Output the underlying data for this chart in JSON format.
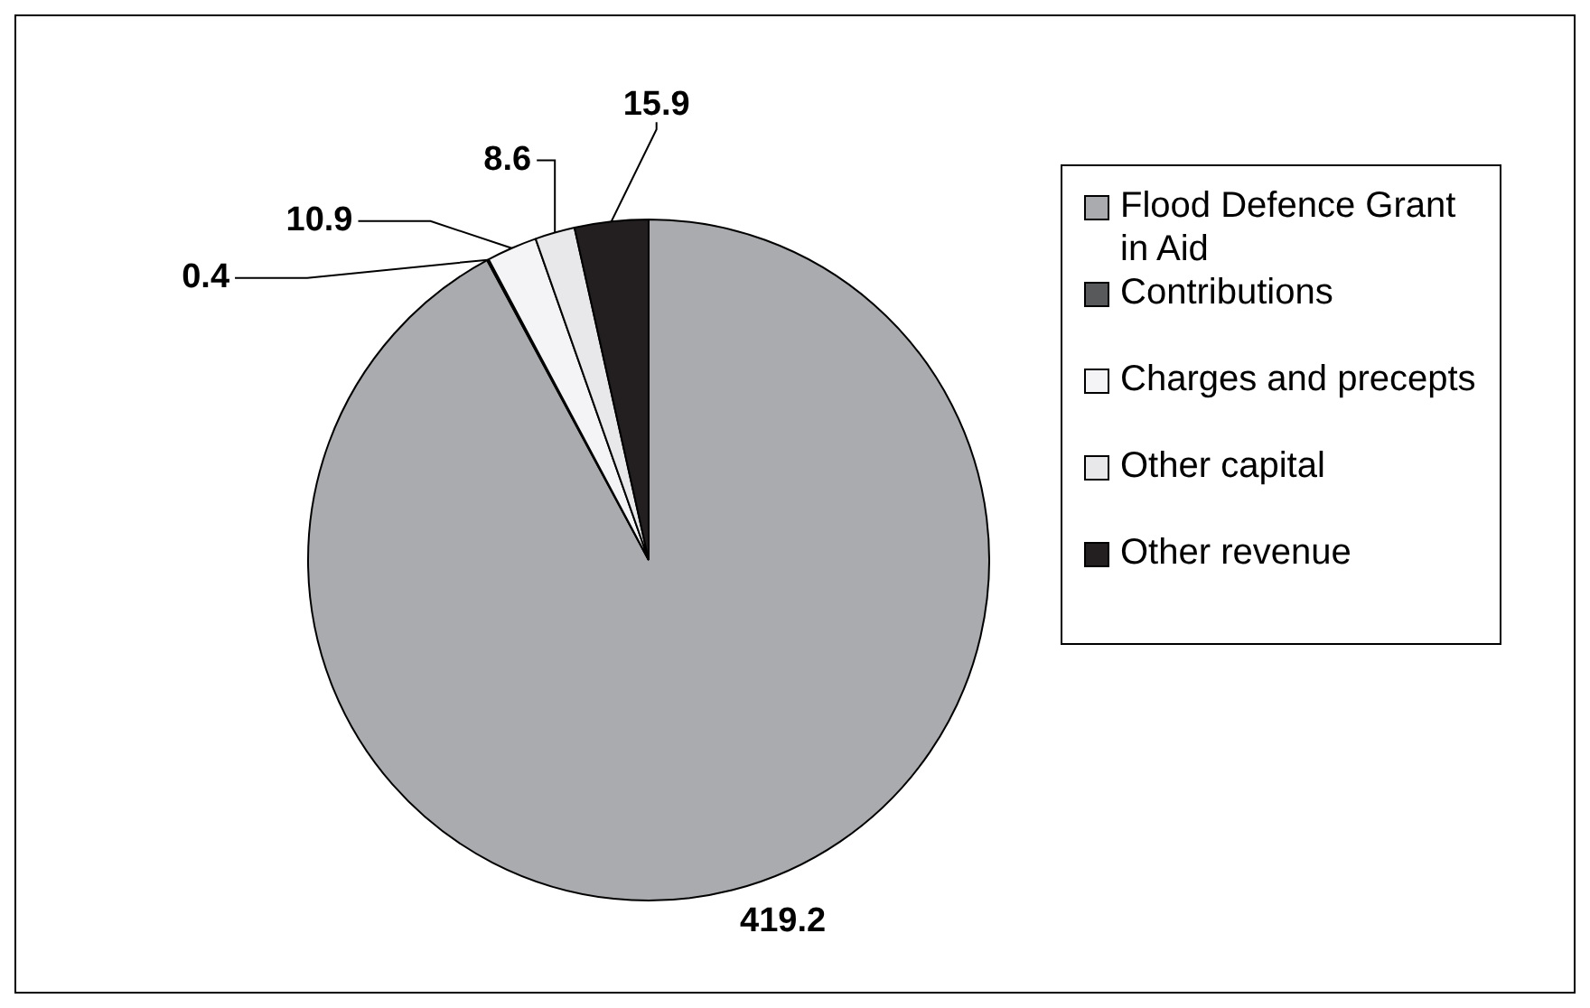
{
  "chart_data": {
    "type": "pie",
    "categories": [
      "Flood Defence Grant in Aid",
      "Contributions",
      "Charges and precepts",
      "Other capital",
      "Other revenue"
    ],
    "values": [
      419.2,
      0.4,
      10.9,
      8.6,
      15.9
    ],
    "colors": [
      "#a9abae",
      "#58595b",
      "#f4f4f6",
      "#e8e8ea",
      "#231f20"
    ],
    "data_labels": true,
    "legend": "right"
  }
}
